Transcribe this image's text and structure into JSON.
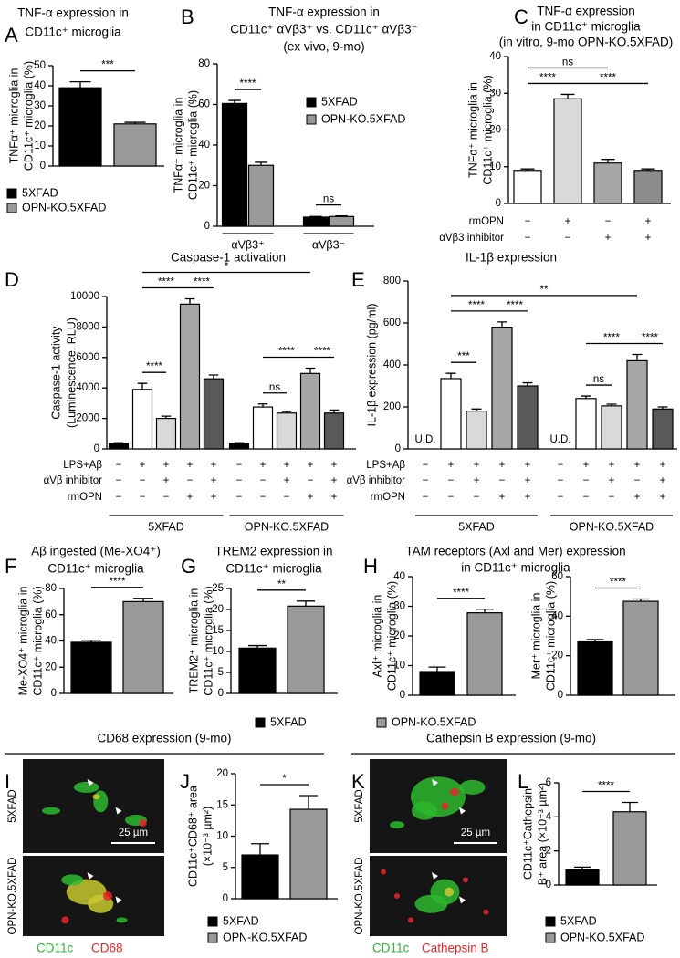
{
  "chart_data": [
    {
      "type": "bar",
      "letter": "A",
      "title": [
        "TNF-α expression in",
        "CD11c⁺ microglia"
      ],
      "ylabel": [
        "TNFα⁺ microglia in",
        "CD11c⁺ microglia (%)"
      ],
      "ylim": [
        0,
        50
      ],
      "yticks": [
        0,
        10,
        20,
        30,
        40,
        50
      ],
      "categories": [
        null
      ],
      "series": [
        {
          "name": "5XFAD",
          "color": "#000000",
          "values": [
            39
          ],
          "errors": [
            3
          ]
        },
        {
          "name": "OPN-KO.5XFAD",
          "color": "#999999",
          "values": [
            21
          ],
          "errors": [
            0.8
          ]
        }
      ],
      "sig": [
        {
          "text": "***",
          "bars": [
            0,
            1
          ]
        }
      ]
    },
    {
      "type": "bar",
      "letter": "B",
      "title": [
        "TNF-α expression in",
        "CD11c⁺ αVβ3⁺ vs. CD11c⁺ αVβ3⁻",
        "(ex vivo, 9-mo)"
      ],
      "ylabel": [
        "TNFα⁺ microglia in",
        "CD11c⁺ microglia (%)"
      ],
      "ylim": [
        0,
        80
      ],
      "yticks": [
        0,
        20,
        40,
        60,
        80
      ],
      "categories": [
        "αVβ3⁺",
        "αVβ3⁻"
      ],
      "series": [
        {
          "name": "5XFAD",
          "color": "#000000",
          "values": [
            60.5,
            4.5
          ],
          "errors": [
            1.5,
            0.3
          ]
        },
        {
          "name": "OPN-KO.5XFAD",
          "color": "#999999",
          "values": [
            30,
            4.8
          ],
          "errors": [
            1.5,
            0.3
          ]
        }
      ],
      "sig": [
        {
          "text": "****",
          "bars": [
            0,
            1
          ]
        },
        {
          "text": "ns",
          "bars": [
            2,
            3
          ]
        }
      ]
    },
    {
      "type": "bar",
      "letter": "C",
      "title": [
        "TNF-α expression",
        "in CD11c⁺ microglia",
        "(in vitro, 9-mo OPN-KO.5XFAD)"
      ],
      "ylabel": [
        "TNFα⁺ microglia in",
        "CD11c⁺ microglia (%)"
      ],
      "ylim": [
        0,
        40
      ],
      "yticks": [
        0,
        10,
        20,
        30,
        40
      ],
      "values": [
        9,
        28.5,
        11,
        9
      ],
      "errors": [
        0.4,
        1.2,
        1,
        0.4
      ],
      "colors": [
        "#ffffff",
        "#d9d9d9",
        "#a6a6a6",
        "#8c8c8c"
      ],
      "conditions": [
        {
          "name": "rmOPN",
          "signs": [
            "−",
            "+",
            "−",
            "+"
          ]
        },
        {
          "name": "αVβ3 inhibitor",
          "signs": [
            "−",
            "−",
            "+",
            "+"
          ]
        }
      ],
      "sig": [
        {
          "text": "****",
          "bars": [
            0,
            1
          ]
        },
        {
          "text": "****",
          "bars": [
            1,
            3
          ]
        },
        {
          "text": "ns",
          "bars": [
            0,
            2
          ]
        }
      ]
    },
    {
      "type": "bar",
      "letter": "D",
      "title": [
        "Caspase-1 activation"
      ],
      "ylabel": [
        "Caspase-1 activity",
        "(Luminescence, RLU)"
      ],
      "ylim": [
        0,
        10000
      ],
      "yticks": [
        0,
        2000,
        4000,
        6000,
        8000,
        10000
      ],
      "colors": [
        "#000000",
        "#ffffff",
        "#d9d9d9",
        "#a6a6a6",
        "#595959"
      ],
      "groups": [
        {
          "name": "5XFAD",
          "values": [
            350,
            3900,
            2000,
            9500,
            4600
          ],
          "errors": [
            50,
            400,
            150,
            350,
            250
          ]
        },
        {
          "name": "OPN-KO.5XFAD",
          "values": [
            350,
            2750,
            2350,
            4950,
            2350
          ],
          "errors": [
            50,
            200,
            100,
            350,
            200
          ]
        }
      ],
      "conditions": [
        {
          "name": "LPS+Aβ",
          "signs": [
            "−",
            "+",
            "+",
            "+",
            "+"
          ]
        },
        {
          "name": "αVβ inhibitor",
          "signs": [
            "−",
            "−",
            "+",
            "−",
            "+"
          ]
        },
        {
          "name": "rmOPN",
          "signs": [
            "−",
            "−",
            "−",
            "+",
            "+"
          ]
        }
      ],
      "sig": [
        {
          "text": "****",
          "bars": [
            1,
            2
          ]
        },
        {
          "text": "****",
          "bars": [
            1,
            3
          ]
        },
        {
          "text": "****",
          "bars": [
            3,
            4
          ]
        },
        {
          "text": "ns",
          "bars": [
            6,
            7
          ]
        },
        {
          "text": "****",
          "bars": [
            6,
            8
          ]
        },
        {
          "text": "****",
          "bars": [
            8,
            9
          ]
        },
        {
          "text": "*",
          "bars": [
            1,
            8
          ]
        }
      ]
    },
    {
      "type": "bar",
      "letter": "E",
      "title": [
        "IL-1β expression"
      ],
      "ylabel": [
        "IL-1β expression (pg/ml)"
      ],
      "ylim": [
        0,
        800
      ],
      "yticks": [
        0,
        200,
        400,
        600,
        800
      ],
      "colors": [
        "#000000",
        "#ffffff",
        "#d9d9d9",
        "#a6a6a6",
        "#595959"
      ],
      "groups": [
        {
          "name": "5XFAD",
          "values": [
            null,
            335,
            180,
            580,
            300
          ],
          "value_labels": [
            "U.D.",
            null,
            null,
            null,
            null
          ],
          "errors": [
            null,
            25,
            10,
            25,
            15
          ]
        },
        {
          "name": "OPN-KO.5XFAD",
          "values": [
            null,
            240,
            205,
            420,
            190
          ],
          "value_labels": [
            "U.D.",
            null,
            null,
            null,
            null
          ],
          "errors": [
            null,
            12,
            8,
            30,
            10
          ]
        }
      ],
      "conditions": [
        {
          "name": "LPS+Aβ",
          "signs": [
            "−",
            "+",
            "+",
            "+",
            "+"
          ]
        },
        {
          "name": "αVβ inhibitor",
          "signs": [
            "−",
            "−",
            "+",
            "−",
            "+"
          ]
        },
        {
          "name": "rmOPN",
          "signs": [
            "−",
            "−",
            "−",
            "+",
            "+"
          ]
        }
      ],
      "sig": [
        {
          "text": "***",
          "bars": [
            1,
            2
          ]
        },
        {
          "text": "****",
          "bars": [
            1,
            3
          ]
        },
        {
          "text": "****",
          "bars": [
            3,
            4
          ]
        },
        {
          "text": "ns",
          "bars": [
            6,
            7
          ]
        },
        {
          "text": "****",
          "bars": [
            6,
            8
          ]
        },
        {
          "text": "****",
          "bars": [
            8,
            9
          ]
        },
        {
          "text": "**",
          "bars": [
            1,
            8
          ]
        }
      ]
    },
    {
      "type": "bar",
      "letter": "F",
      "title": [
        "Aβ ingested (Me-XO4⁺)",
        "CD11c⁺ microglia"
      ],
      "ylabel": [
        "Me-XO4⁺ microglia in",
        "CD11c⁺ microglia (%)"
      ],
      "ylim": [
        0,
        80
      ],
      "yticks": [
        0,
        20,
        40,
        60,
        80
      ],
      "categories": [
        null
      ],
      "series": [
        {
          "color": "#000000",
          "values": [
            39
          ],
          "errors": [
            1.5
          ]
        },
        {
          "color": "#999999",
          "values": [
            70
          ],
          "errors": [
            2.5
          ]
        }
      ],
      "sig": [
        {
          "text": "****",
          "bars": [
            0,
            1
          ]
        }
      ]
    },
    {
      "type": "bar",
      "letter": "G",
      "title": [
        "TREM2 expression in",
        "CD11c⁺ microglia"
      ],
      "ylabel": [
        "TREM2⁺ microglia in",
        "CD11c⁺ microglia (%)"
      ],
      "ylim": [
        0,
        25
      ],
      "yticks": [
        0,
        5,
        10,
        15,
        20,
        25
      ],
      "categories": [
        null
      ],
      "series": [
        {
          "color": "#000000",
          "values": [
            10.8
          ],
          "errors": [
            0.6
          ]
        },
        {
          "color": "#999999",
          "values": [
            20.8
          ],
          "errors": [
            1.2
          ]
        }
      ],
      "sig": [
        {
          "text": "**",
          "bars": [
            0,
            1
          ]
        }
      ]
    },
    {
      "type": "bar",
      "letter": "H",
      "title": [
        "TAM receptors (Axl and Mer) expression",
        "in CD11c⁺ microglia"
      ],
      "ylabel": [
        "Axl⁺ microglia in",
        "CD11c⁺ microglia (%)"
      ],
      "ylim": [
        0,
        40
      ],
      "yticks": [
        0,
        10,
        20,
        30,
        40
      ],
      "categories": [
        null
      ],
      "series": [
        {
          "color": "#000000",
          "values": [
            8
          ],
          "errors": [
            1.5
          ]
        },
        {
          "color": "#999999",
          "values": [
            27.8
          ],
          "errors": [
            1.2
          ]
        }
      ],
      "sig": [
        {
          "text": "****",
          "bars": [
            0,
            1
          ]
        }
      ]
    },
    {
      "type": "bar",
      "ylabel": [
        "Mer⁺ microglia in",
        "CD11c⁺ microglia (%)"
      ],
      "ylim": [
        0,
        60
      ],
      "yticks": [
        0,
        20,
        40,
        60
      ],
      "categories": [
        null
      ],
      "series": [
        {
          "color": "#000000",
          "values": [
            27
          ],
          "errors": [
            1.2
          ]
        },
        {
          "color": "#999999",
          "values": [
            47.5
          ],
          "errors": [
            1.2
          ]
        }
      ],
      "sig": [
        {
          "text": "****",
          "bars": [
            0,
            1
          ]
        }
      ]
    },
    {
      "type": "bar",
      "letter": "J",
      "ylabel": [
        "CD11c⁺CD68⁺ area",
        "(×10⁻³ µm²)"
      ],
      "ylim": [
        0,
        20
      ],
      "yticks": [
        0,
        5,
        10,
        15,
        20
      ],
      "categories": [
        null
      ],
      "series": [
        {
          "name": "5XFAD",
          "color": "#000000",
          "values": [
            7
          ],
          "errors": [
            1.8
          ]
        },
        {
          "name": "OPN-KO.5XFAD",
          "color": "#999999",
          "values": [
            14.3
          ],
          "errors": [
            2.2
          ]
        }
      ],
      "sig": [
        {
          "text": "*",
          "bars": [
            0,
            1
          ]
        }
      ]
    },
    {
      "type": "bar",
      "letter": "L",
      "ylabel": [
        "CD11c⁺Cathepsin",
        "B⁺ area (×10⁻³ µm²)"
      ],
      "ylim": [
        0,
        6
      ],
      "yticks": [
        0,
        2,
        4,
        6
      ],
      "categories": [
        null
      ],
      "series": [
        {
          "name": "5XFAD",
          "color": "#000000",
          "values": [
            0.9
          ],
          "errors": [
            0.15
          ]
        },
        {
          "name": "OPN-KO.5XFAD",
          "color": "#999999",
          "values": [
            4.3
          ],
          "errors": [
            0.55
          ]
        }
      ],
      "sig": [
        {
          "text": "****",
          "bars": [
            0,
            1
          ]
        }
      ]
    }
  ],
  "legend": [
    {
      "name": "5XFAD",
      "color": "#000000"
    },
    {
      "name": "OPN-KO.5XFAD",
      "color": "#999999"
    }
  ],
  "images": [
    {
      "letter": "I",
      "header": "CD68 expression (9-mo)",
      "rows": [
        "5XFAD",
        "OPN-KO.5XFAD"
      ],
      "scale_bar": "25 µm",
      "channels": [
        {
          "name": "CD11c",
          "color": "#2db82d"
        },
        {
          "name": "CD68",
          "color": "#e8262a"
        }
      ]
    },
    {
      "letter": "K",
      "header": "Cathepsin B expression (9-mo)",
      "rows": [
        "5XFAD",
        "OPN-KO.5XFAD"
      ],
      "scale_bar": "25 µm",
      "channels": [
        {
          "name": "CD11c",
          "color": "#2db82d"
        },
        {
          "name": "Cathepsin B",
          "color": "#e8262a"
        }
      ]
    }
  ]
}
